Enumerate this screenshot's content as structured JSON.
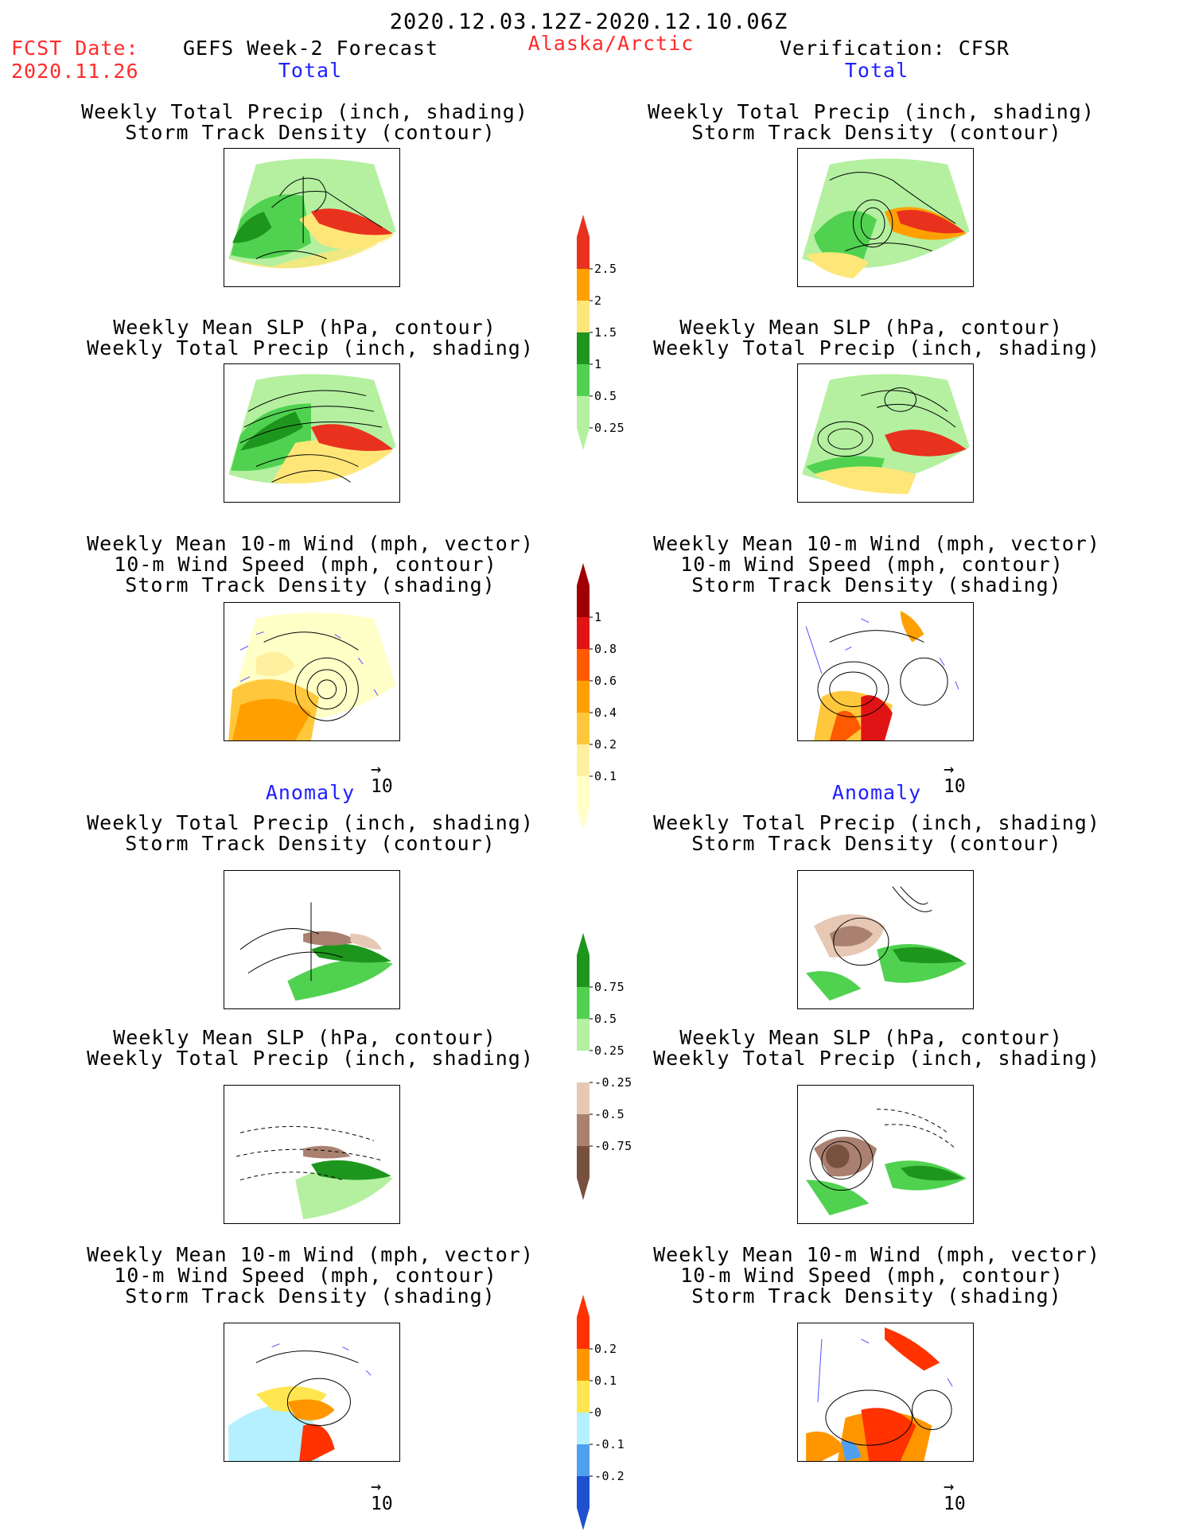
{
  "header": {
    "date_range": "2020.12.03.12Z-2020.12.10.06Z",
    "fcst_label": "FCST Date:",
    "fcst_date": "2020.11.26",
    "model": "GEFS Week-2 Forecast",
    "region": "Alaska/Arctic",
    "verification": "Verification: CFSR"
  },
  "sections": {
    "total": "Total",
    "anomaly": "Anomaly"
  },
  "panel_titles": {
    "precip_storm": [
      "Weekly Total Precip (inch, shading)",
      "Storm Track Density (contour)"
    ],
    "slp_precip": [
      "Weekly Mean SLP (hPa, contour)",
      "Weekly Total Precip (inch, shading)"
    ],
    "wind_storm": [
      "Weekly Mean 10-m Wind (mph, vector)",
      "10-m Wind Speed (mph, contour)",
      "Storm Track Density (shading)"
    ]
  },
  "vector_ref": "10",
  "colorbars": [
    {
      "name": "total-precip",
      "labels": [
        "2.5",
        "2",
        "1.5",
        "1",
        "0.5",
        "0.25"
      ],
      "colors": [
        "#e8321e",
        "#ffa000",
        "#ffe678",
        "#1e961e",
        "#50d250",
        "#b4f0a0"
      ]
    },
    {
      "name": "total-storm-density",
      "labels": [
        "1",
        "0.8",
        "0.6",
        "0.4",
        "0.2",
        "0.1"
      ],
      "colors": [
        "#a00000",
        "#e01414",
        "#ff5a00",
        "#ffa000",
        "#ffc83c",
        "#fff0a0",
        "#ffffc8"
      ]
    },
    {
      "name": "anom-precip",
      "labels": [
        "0.75",
        "0.5",
        "0.25",
        "-0.25",
        "-0.5",
        "-0.75"
      ],
      "colors": [
        "#1e961e",
        "#50d250",
        "#b4f0a0",
        "#ffffff",
        "#e6c8b4",
        "#aa8070",
        "#785040"
      ]
    },
    {
      "name": "anom-storm-density",
      "labels": [
        "0.2",
        "0.1",
        "0",
        "-0.1",
        "-0.2"
      ],
      "colors": [
        "#ff3200",
        "#ff9600",
        "#ffe650",
        "#b4f0ff",
        "#50a0f0",
        "#1e50d0"
      ]
    }
  ],
  "colors": {
    "red_text": "#ff2a2a",
    "blue_text": "#1f1fff"
  }
}
